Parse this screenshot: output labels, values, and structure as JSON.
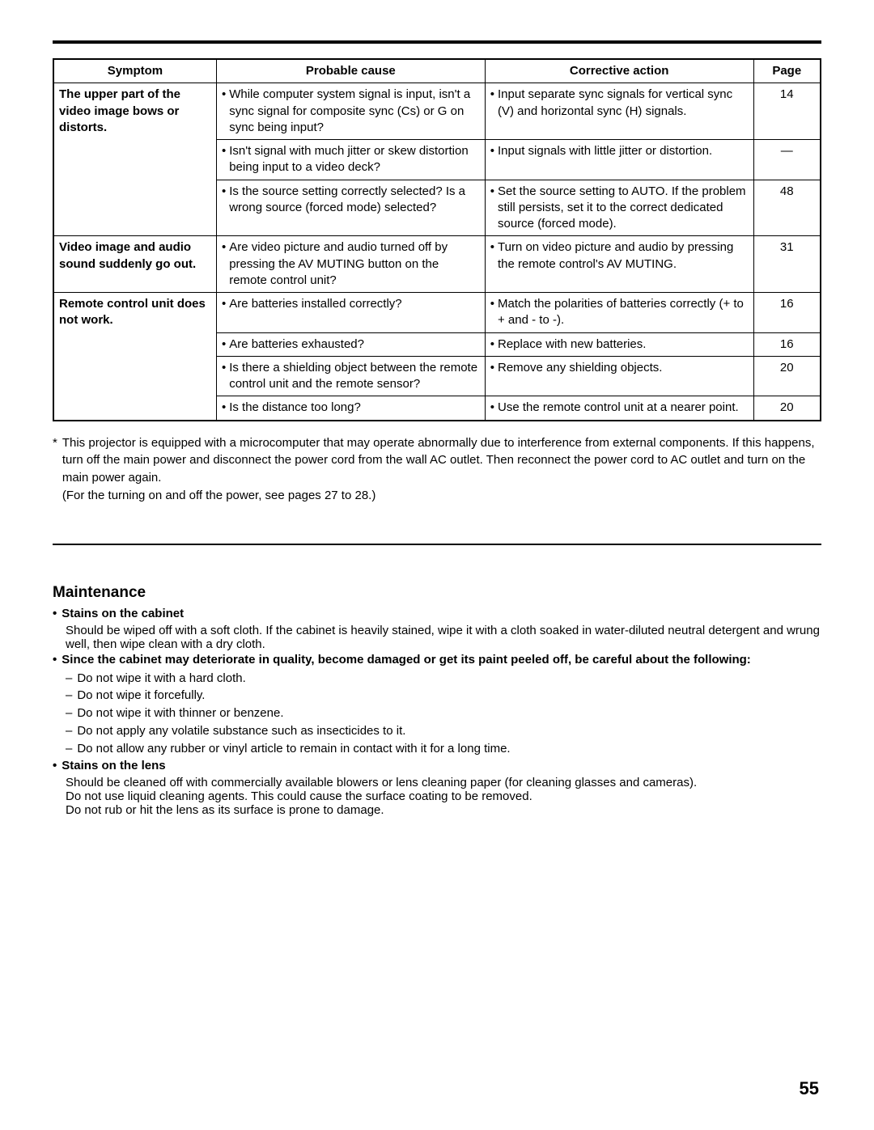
{
  "table": {
    "headers": [
      "Symptom",
      "Probable cause",
      "Corrective action",
      "Page"
    ],
    "groups": [
      {
        "symptom": "The upper part of the video image bows or distorts.",
        "rows": [
          {
            "cause": "While computer system signal is input, isn't a sync signal for composite sync (Cs) or G on sync being input?",
            "action": "Input separate sync signals for vertical sync (V) and horizontal sync (H) signals.",
            "page": "14"
          },
          {
            "cause": "Isn't signal with much jitter or skew distortion being input to a video deck?",
            "action": "Input signals with little jitter or distortion.",
            "page": "—"
          },
          {
            "cause": "Is the source setting correctly selected? Is a wrong source (forced mode) selected?",
            "action": "Set the source setting to AUTO. If the problem still persists, set it to the correct dedicated source (forced mode).",
            "page": "48"
          }
        ]
      },
      {
        "symptom": "Video image and audio sound suddenly go out.",
        "rows": [
          {
            "cause": "Are video picture and audio turned off by pressing the AV MUTING button on the remote control unit?",
            "action": "Turn on video picture and audio by pressing the remote control's AV MUTING.",
            "page": "31"
          }
        ]
      },
      {
        "symptom": "Remote control unit does not work.",
        "rows": [
          {
            "cause": "Are batteries installed correctly?",
            "action": "Match the polarities of batteries correctly (+ to + and - to -).",
            "page": "16"
          },
          {
            "cause": "Are batteries exhausted?",
            "action": "Replace with new batteries.",
            "page": "16"
          },
          {
            "cause": "Is there a shielding object between the remote control unit and the remote sensor?",
            "action": "Remove any shielding objects.",
            "page": "20"
          },
          {
            "cause": "Is the distance too long?",
            "action": "Use the remote control unit at a nearer point.",
            "page": "20"
          }
        ]
      }
    ]
  },
  "footnote": {
    "lines": [
      "This projector is equipped with a microcomputer that may operate abnormally due to interference from external components. If this happens, turn off the main power and disconnect the power cord from the wall AC outlet. Then reconnect the power cord to AC outlet and turn on the main power again.",
      "(For the turning on and off the power, see pages 27 to 28.)"
    ]
  },
  "maintenance": {
    "title": "Maintenance",
    "sections": [
      {
        "heading": "Stains on the cabinet",
        "body": "Should be wiped off with a soft cloth. If the cabinet is heavily stained, wipe it with a cloth soaked in water-diluted neutral detergent and wrung well, then wipe clean with a dry cloth."
      },
      {
        "heading": "Since the cabinet may deteriorate in quality, become damaged or get its paint peeled off, be careful about the following:",
        "subitems": [
          "Do not wipe it with a hard cloth.",
          "Do not wipe it forcefully.",
          "Do not wipe it with thinner or benzene.",
          "Do not apply any volatile substance such as insecticides to it.",
          "Do not allow any rubber or vinyl article to remain in contact with it for a long time."
        ]
      },
      {
        "heading": "Stains on the lens",
        "bodyLines": [
          "Should be cleaned off with commercially available blowers or lens cleaning paper (for cleaning glasses and cameras).",
          "Do not use liquid cleaning agents. This could cause the surface coating to be removed.",
          "Do not rub or hit the lens as its surface is prone to damage."
        ]
      }
    ]
  },
  "pageNumber": "55"
}
